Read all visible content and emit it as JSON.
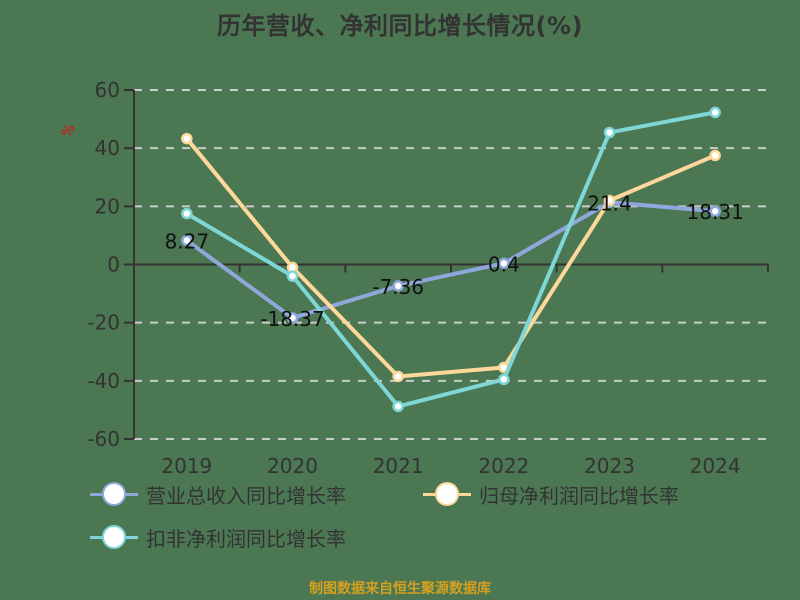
{
  "title": "历年营收、净利同比增长情况(%)",
  "footer": "制图数据来自恒生聚源数据库",
  "colors": {
    "background": "#4b7752",
    "revenue": "#8fa8dc",
    "parent_net_profit": "#fdd89a",
    "deducted_net_profit": "#7fd6d6",
    "axis": "#333333",
    "grid": "#cccccc",
    "unit": "#e01010",
    "footer": "#d4a020"
  },
  "chart_data": {
    "type": "line",
    "title": "历年营收、净利同比增长情况(%)",
    "xlabel": "",
    "ylabel": "%",
    "categories": [
      "2019",
      "2020",
      "2021",
      "2022",
      "2023",
      "2024"
    ],
    "ylim": [
      -60,
      60
    ],
    "yticks": [
      60,
      40,
      20,
      0,
      -20,
      -40,
      -60
    ],
    "grid": true,
    "legend_position": "bottom",
    "series": [
      {
        "name": "营业总收入同比增长率",
        "color": "#8fa8dc",
        "values": [
          8.27,
          -18.37,
          -7.36,
          0.4,
          21.4,
          18.31
        ],
        "labels": [
          "8.27",
          "-18.37",
          "-7.36",
          "0.4",
          "21.4",
          "18.31"
        ]
      },
      {
        "name": "归母净利润同比增长率",
        "color": "#fdd89a",
        "values": [
          43.3,
          -1.0,
          -38.5,
          -35.4,
          22.0,
          37.5
        ]
      },
      {
        "name": "扣非净利润同比增长率",
        "color": "#7fd6d6",
        "values": [
          17.5,
          -4.0,
          -48.8,
          -39.5,
          45.4,
          52.3
        ]
      }
    ]
  },
  "legend": [
    {
      "label": "营业总收入同比增长率",
      "color": "#8fa8dc"
    },
    {
      "label": "归母净利润同比增长率",
      "color": "#fdd89a"
    },
    {
      "label": "扣非净利润同比增长率",
      "color": "#7fd6d6"
    }
  ]
}
